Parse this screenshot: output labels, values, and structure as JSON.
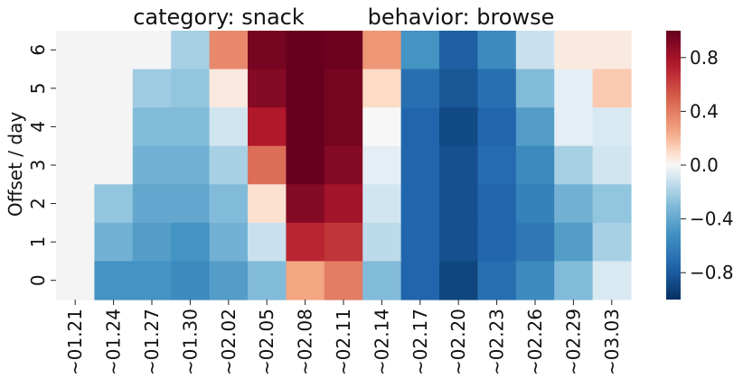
{
  "chart_data": {
    "type": "heatmap",
    "title_left": "category: snack",
    "title_right": "behavior: browse",
    "ylabel": "Offset / day",
    "xlabel": "",
    "x_categories": [
      "~01.21",
      "~01.24",
      "~01.27",
      "~01.30",
      "~02.02",
      "~02.05",
      "~02.08",
      "~02.11",
      "~02.14",
      "~02.17",
      "~02.20",
      "~02.23",
      "~02.26",
      "~02.29",
      "~03.03"
    ],
    "y_categories": [
      "6",
      "5",
      "4",
      "3",
      "2",
      "1",
      "0"
    ],
    "values": [
      [
        null,
        null,
        null,
        -0.2,
        0.35,
        0.95,
        1.0,
        0.98,
        0.3,
        -0.5,
        -0.78,
        -0.55,
        -0.12,
        0.05,
        0.05
      ],
      [
        null,
        null,
        -0.22,
        -0.25,
        0.05,
        0.9,
        1.0,
        0.95,
        0.1,
        -0.7,
        -0.82,
        -0.7,
        -0.3,
        -0.05,
        0.15
      ],
      [
        null,
        null,
        -0.3,
        -0.3,
        -0.1,
        0.75,
        1.0,
        0.95,
        0.0,
        -0.75,
        -0.88,
        -0.75,
        -0.45,
        -0.05,
        -0.08
      ],
      [
        null,
        null,
        -0.35,
        -0.35,
        -0.2,
        0.45,
        1.0,
        0.9,
        -0.05,
        -0.75,
        -0.85,
        -0.72,
        -0.55,
        -0.2,
        -0.1
      ],
      [
        null,
        -0.25,
        -0.4,
        -0.4,
        -0.3,
        0.08,
        0.9,
        0.8,
        -0.1,
        -0.75,
        -0.85,
        -0.75,
        -0.6,
        -0.35,
        -0.25
      ],
      [
        null,
        -0.35,
        -0.45,
        -0.5,
        -0.35,
        -0.12,
        0.7,
        0.65,
        -0.15,
        -0.75,
        -0.85,
        -0.75,
        -0.65,
        -0.45,
        -0.2
      ],
      [
        null,
        -0.5,
        -0.5,
        -0.55,
        -0.45,
        -0.3,
        0.25,
        0.4,
        -0.3,
        -0.75,
        -0.9,
        -0.7,
        -0.55,
        -0.3,
        -0.08
      ]
    ],
    "colorbar": {
      "min": -1.0,
      "max": 1.0,
      "ticks": [
        0.8,
        0.4,
        0.0,
        -0.4,
        -0.8
      ],
      "tick_labels": [
        "0.8",
        "0.4",
        "0.0",
        "−0.4",
        "−0.8"
      ]
    },
    "colormap": "RdBu_r",
    "missing_color": "#f4f4f4"
  }
}
